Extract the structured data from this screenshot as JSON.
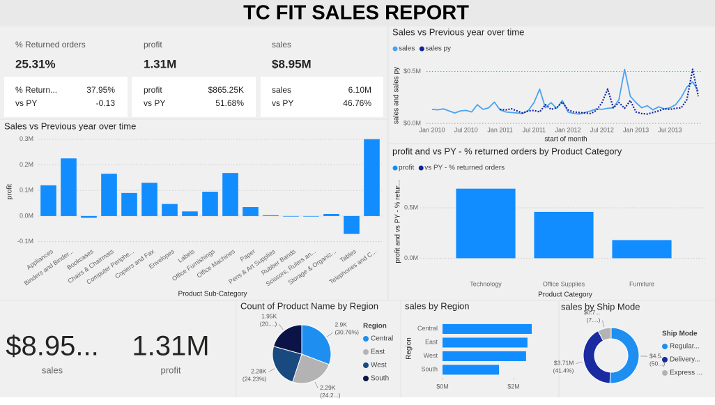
{
  "title": "TC FIT SALES REPORT",
  "cards": [
    {
      "label": "% Returned orders",
      "value": "25.31%"
    },
    {
      "label": "profit",
      "value": "1.31M"
    },
    {
      "label": "sales",
      "value": "$8.95M"
    }
  ],
  "comparison_cards": [
    {
      "label": "% Return...",
      "value": "37.95%",
      "sub_label": "vs PY",
      "sub_value": "-0.13"
    },
    {
      "label": "profit",
      "value": "$865.25K",
      "sub_label": "vs PY",
      "sub_value": "51.68%"
    },
    {
      "label": "sales",
      "value": "6.10M",
      "sub_label": "vs PY",
      "sub_value": "46.76%"
    }
  ],
  "big_cards": [
    {
      "value": "$8.95...",
      "label": "sales"
    },
    {
      "value": "1.31M",
      "label": "profit"
    }
  ],
  "chart_data": [
    {
      "type": "bar",
      "title": "Sales vs Previous year over time",
      "x_label": "Product Sub-Category",
      "y_label": "profit",
      "categories": [
        "Appliances",
        "Binders and Binder...",
        "Bookcases",
        "Chairs & Chairmats",
        "Computer Periphe...",
        "Copiers and Fax",
        "Envelopes",
        "Labels",
        "Office Furnishings",
        "Office Machines",
        "Paper",
        "Pens & Art Supplies",
        "Rubber Bands",
        "Scissors, Rulers an...",
        "Storage & Organiz...",
        "Tables",
        "Telephones and C..."
      ],
      "values": [
        120000,
        225000,
        -7000,
        165000,
        90000,
        130000,
        47000,
        18000,
        95000,
        168000,
        35000,
        3000,
        -2000,
        -2000,
        8000,
        -70000,
        300000
      ],
      "color": "#118dff",
      "ylim": [
        -120000,
        310000
      ],
      "yticks": [
        {
          "value": -100000,
          "label": "-0.1M"
        },
        {
          "value": 0,
          "label": "0.0M"
        },
        {
          "value": 100000,
          "label": "0.1M"
        },
        {
          "value": 200000,
          "label": "0.2M"
        },
        {
          "value": 300000,
          "label": "0.3M"
        }
      ],
      "grid": true
    },
    {
      "type": "line",
      "title": "Sales vs Previous year over time",
      "x_label": "start of month",
      "y_label": "sales and sales py",
      "x": [
        "Jan 2010",
        "Feb 2010",
        "Mar 2010",
        "Apr 2010",
        "May 2010",
        "Jun 2010",
        "Jul 2010",
        "Aug 2010",
        "Sep 2010",
        "Oct 2010",
        "Nov 2010",
        "Dec 2010",
        "Jan 2011",
        "Feb 2011",
        "Mar 2011",
        "Apr 2011",
        "May 2011",
        "Jun 2011",
        "Jul 2011",
        "Aug 2011",
        "Sep 2011",
        "Oct 2011",
        "Nov 2011",
        "Dec 2011",
        "Jan 2012",
        "Feb 2012",
        "Mar 2012",
        "Apr 2012",
        "May 2012",
        "Jun 2012",
        "Jul 2012",
        "Aug 2012",
        "Sep 2012",
        "Oct 2012",
        "Nov 2012",
        "Dec 2012",
        "Jan 2013",
        "Feb 2013",
        "Mar 2013",
        "Apr 2013",
        "May 2013",
        "Jun 2013",
        "Jul 2013",
        "Aug 2013",
        "Sep 2013",
        "Oct 2013",
        "Nov 2013",
        "Dec 2013"
      ],
      "series": [
        {
          "name": "sales",
          "color": "#4aa3f0",
          "dash": "solid",
          "values": [
            135000,
            130000,
            140000,
            120000,
            100000,
            120000,
            125000,
            110000,
            180000,
            135000,
            150000,
            205000,
            130000,
            110000,
            105000,
            100000,
            95000,
            125000,
            200000,
            330000,
            150000,
            200000,
            145000,
            220000,
            110000,
            95000,
            90000,
            105000,
            120000,
            140000,
            135000,
            145000,
            150000,
            230000,
            520000,
            260000,
            200000,
            150000,
            170000,
            130000,
            160000,
            140000,
            150000,
            180000,
            250000,
            350000,
            400000,
            310000
          ]
        },
        {
          "name": "sales py",
          "color": "#12239e",
          "dash": "dotted",
          "values": [
            null,
            null,
            null,
            null,
            null,
            null,
            null,
            null,
            null,
            null,
            null,
            null,
            135000,
            130000,
            140000,
            120000,
            100000,
            120000,
            125000,
            110000,
            180000,
            135000,
            150000,
            205000,
            130000,
            110000,
            105000,
            100000,
            95000,
            125000,
            200000,
            330000,
            150000,
            200000,
            145000,
            220000,
            110000,
            95000,
            90000,
            105000,
            120000,
            140000,
            135000,
            145000,
            150000,
            230000,
            520000,
            260000
          ]
        }
      ],
      "ylim": [
        -20000,
        550000
      ],
      "yticks": [
        {
          "value": 0,
          "label": "$0.0M"
        },
        {
          "value": 500000,
          "label": "$0.5M"
        }
      ],
      "xticks": [
        "Jan 2010",
        "Jul 2010",
        "Jan 2011",
        "Jul 2011",
        "Jan 2012",
        "Jul 2012",
        "Jan 2013",
        "Jul 2013"
      ],
      "grid": true
    },
    {
      "type": "bar",
      "title": "profit and vs PY - % returned orders by Product Category",
      "x_label": "Product Category",
      "y_label": "profit and vs PY - % retur...",
      "categories": [
        "Technology",
        "Office Supplies",
        "Furniture"
      ],
      "series": [
        {
          "name": "profit",
          "color": "#118dff",
          "values": [
            690000,
            460000,
            180000
          ]
        },
        {
          "name": "vs PY - % returned orders",
          "color": "#12239e",
          "values": [
            null,
            null,
            null
          ]
        }
      ],
      "ylim": [
        -170000,
        750000
      ],
      "yticks": [
        {
          "value": 0,
          "label": "0.0M"
        },
        {
          "value": 500000,
          "label": "0.5M"
        }
      ],
      "grid": true
    },
    {
      "type": "pie",
      "title": "Count of Product Name by Region",
      "legend_title": "Region",
      "categories": [
        "Central",
        "East",
        "West",
        "South"
      ],
      "values": [
        2900,
        2290,
        2280,
        1950
      ],
      "value_labels": [
        "2.9K",
        "2.29K",
        "2.28K",
        "1.95K"
      ],
      "share_labels": [
        "(30.76%)",
        "(24.2...)",
        "(24.23%)",
        "(20....)"
      ],
      "colors": [
        "#1f8ef1",
        "#b3b3b3",
        "#194a7f",
        "#0c1447"
      ]
    },
    {
      "type": "hbar",
      "title": "sales by Region",
      "y_label": "Region",
      "categories": [
        "Central",
        "East",
        "West",
        "South"
      ],
      "values": [
        2510000,
        2390000,
        2350000,
        1590000
      ],
      "color": "#118dff",
      "xlim": [
        0,
        3000000
      ],
      "xticks": [
        {
          "value": 0,
          "label": "$0M"
        },
        {
          "value": 2000000,
          "label": "$2M"
        }
      ]
    },
    {
      "type": "donut",
      "title": "sales by Ship Mode",
      "legend_title": "Ship Mode",
      "categories": [
        "Regular...",
        "Delivery...",
        "Express ..."
      ],
      "values": [
        4540000,
        3710000,
        700000
      ],
      "value_labels": [
        "$4.5...",
        "$3.71M",
        "$0.7..."
      ],
      "share_labels": [
        "(50...)",
        "(41.4%)",
        "(7....)"
      ],
      "colors": [
        "#1f8ef1",
        "#1a2aa0",
        "#b3b3b3"
      ]
    }
  ]
}
